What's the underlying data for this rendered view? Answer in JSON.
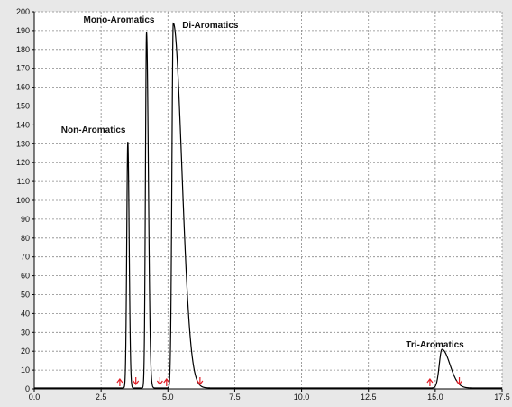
{
  "chart_data": {
    "type": "line",
    "title": "",
    "xlabel": "",
    "ylabel": "",
    "xlim": [
      0.0,
      17.5
    ],
    "ylim": [
      0,
      200
    ],
    "x_ticks": [
      "0.0",
      "2.5",
      "5.0",
      "7.5",
      "10.0",
      "12.5",
      "15.0",
      "17.5"
    ],
    "y_ticks": [
      "0",
      "10",
      "20",
      "30",
      "40",
      "50",
      "60",
      "70",
      "80",
      "90",
      "100",
      "110",
      "120",
      "130",
      "140",
      "150",
      "160",
      "170",
      "180",
      "190",
      "200"
    ],
    "grid": true,
    "baseline": 0.5,
    "peaks": [
      {
        "name": "Non-Aromatics",
        "x": 3.5,
        "height": 131
      },
      {
        "name": "Mono-Aromatics",
        "x": 4.2,
        "height": 189
      },
      {
        "name": "Di-Aromatics",
        "x": 5.2,
        "height": 194
      },
      {
        "name": "Tri-Aromatics",
        "x": 15.25,
        "height": 21
      }
    ],
    "annotations": [
      "Non-Aromatics",
      "Mono-Aromatics",
      "Di-Aromatics",
      "Tri-Aromatics"
    ],
    "markers": {
      "type": "arrow",
      "color": "#e01b24",
      "items": [
        {
          "x": 3.2,
          "dir": "up"
        },
        {
          "x": 3.8,
          "dir": "down"
        },
        {
          "x": 4.7,
          "dir": "down"
        },
        {
          "x": 4.95,
          "dir": "up"
        },
        {
          "x": 6.2,
          "dir": "down"
        },
        {
          "x": 14.8,
          "dir": "up"
        },
        {
          "x": 15.9,
          "dir": "down"
        }
      ]
    },
    "colors": {
      "line": "#000000",
      "grid": "#888888",
      "background": "#ffffff",
      "page": "#e8e8e8"
    }
  }
}
